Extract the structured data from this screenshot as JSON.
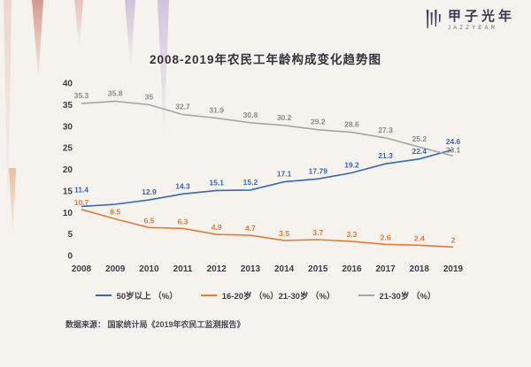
{
  "logo": {
    "title": "甲子光年",
    "subtitle": "JAZZYEAR"
  },
  "chart_data": {
    "type": "line",
    "title": "2008-2019年农民工年龄构成变化趋势图",
    "x": [
      "2008",
      "2009",
      "2010",
      "2011",
      "2012",
      "2013",
      "2014",
      "2015",
      "2016",
      "2017",
      "2018",
      "2019"
    ],
    "ylim": [
      0,
      40
    ],
    "yticks": [
      0,
      5,
      10,
      15,
      20,
      25,
      30,
      35,
      40
    ],
    "grid": false,
    "legend_position": "bottom",
    "series": [
      {
        "name": "50岁以上（%）",
        "color": "#3a67ad",
        "values": [
          11.4,
          11.9,
          12.9,
          14.3,
          15.1,
          15.2,
          17.1,
          17.79,
          19.2,
          21.3,
          22.4,
          24.6
        ],
        "labels": [
          "11.4",
          "",
          "12.9",
          "14.3",
          "15.1",
          "15.2",
          "17.1",
          "17.79",
          "19.2",
          "21.3",
          "22.4",
          "24.6"
        ],
        "label_dy": [
          -16,
          -6,
          -6,
          -6,
          -6,
          -6,
          -6,
          -6,
          -6,
          -6,
          -6,
          -6
        ]
      },
      {
        "name": "16-20岁（%）",
        "color": "#e07b39",
        "values": [
          10.7,
          8.5,
          6.5,
          6.3,
          4.9,
          4.7,
          3.5,
          3.7,
          3.3,
          2.6,
          2.4,
          2
        ],
        "labels": [
          "10.7",
          "8.5",
          "6.5",
          "6.3",
          "4.9",
          "4.7",
          "3.5",
          "3.7",
          "3.3",
          "2.6",
          "2.4",
          "2"
        ],
        "label_dy": [
          -5,
          -5,
          -5,
          -5,
          -5,
          -5,
          -5,
          -5,
          -5,
          -5,
          -5,
          -5
        ]
      },
      {
        "name": "21-30岁（%）",
        "color": "#a6a6a6",
        "values": [
          35.3,
          35.8,
          35,
          32.7,
          31.9,
          30.8,
          30.2,
          29.2,
          28.6,
          27.3,
          25.2,
          23.1
        ],
        "labels": [
          "35.3",
          "35.8",
          "35",
          "32.7",
          "31.9",
          "30.8",
          "30.2",
          "29.2",
          "28.6",
          "27.3",
          "25.2",
          "23.1"
        ],
        "label_dy": [
          -6,
          -6,
          -6,
          -6,
          -6,
          -6,
          -6,
          -6,
          -6,
          -6,
          -6,
          -4
        ]
      }
    ],
    "legend": [
      {
        "label": "50岁以上 （%）",
        "color": "#3a67ad"
      },
      {
        "label": "16-20岁 （%）21-30岁 （%）",
        "color": "#e07b39"
      },
      {
        "label": "21-30岁 （%）",
        "color": "#a6a6a6"
      }
    ]
  },
  "source": "数据来源： 国家统计局《2019年农民工监测报告》"
}
